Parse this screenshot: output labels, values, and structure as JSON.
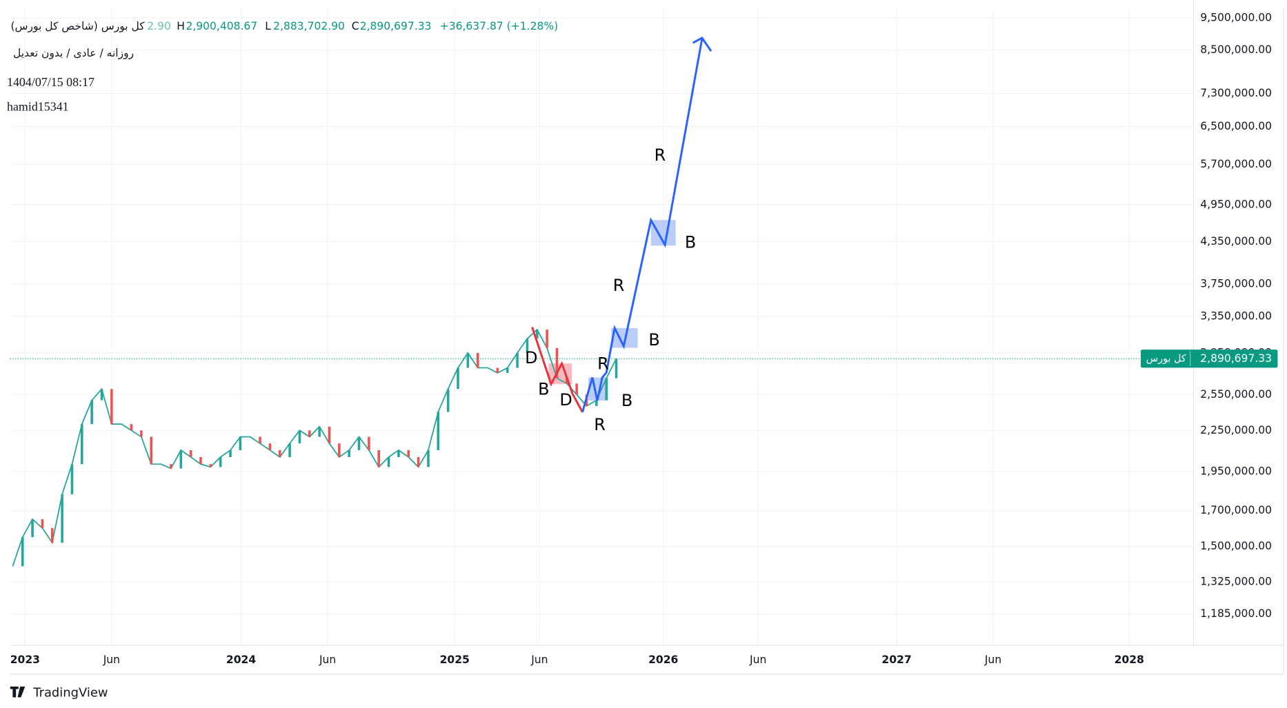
{
  "header": {
    "title": "کل بورس (شاخص کل بورس)",
    "open_fragment": "2.90",
    "h_label": "H",
    "high": "2,900,408.67",
    "l_label": "L",
    "low": "2,883,702.90",
    "c_label": "C",
    "close": "2,890,697.33",
    "change": "+36,637.87 (+1.28%)",
    "interval": "روزانه / عادی / بدون تعدیل",
    "timestamp": "1404/07/15 08:17",
    "author": "hamid15341"
  },
  "chart_data": {
    "type": "line",
    "log_scale": true,
    "grid": true,
    "color": "#26a69a",
    "x_labels": [
      "2023",
      "Jun",
      "2024",
      "Jun",
      "2025",
      "Jun",
      "2026",
      "Jun",
      "2027",
      "Jun",
      "2028"
    ],
    "values": [
      1400000,
      1550000,
      1650000,
      1600000,
      1520000,
      1800000,
      2000000,
      2300000,
      2500000,
      2600000,
      2300000,
      2300000,
      2250000,
      2200000,
      2000000,
      2000000,
      1970000,
      2100000,
      2050000,
      2000000,
      1980000,
      2050000,
      2100000,
      2200000,
      2200000,
      2150000,
      2100000,
      2050000,
      2150000,
      2250000,
      2200000,
      2280000,
      2150000,
      2050000,
      2100000,
      2200000,
      2100000,
      1980000,
      2050000,
      2100000,
      2050000,
      1980000,
      2100000,
      2400000,
      2600000,
      2800000,
      2950000,
      2800000,
      2800000,
      2750000,
      2800000,
      2950000,
      3100000,
      3200000,
      3000000,
      2700000,
      2650000,
      2550000,
      2450000,
      2500000,
      2700000,
      2890697.33
    ],
    "ylim": [
      1062000,
      9830000
    ],
    "yticks": [
      {
        "value": 1185000,
        "label": "1,185,000.00"
      },
      {
        "value": 1325000,
        "label": "1,325,000.00"
      },
      {
        "value": 1500000,
        "label": "1,500,000.00"
      },
      {
        "value": 1700000,
        "label": "1,700,000.00"
      },
      {
        "value": 1950000,
        "label": "1,950,000.00"
      },
      {
        "value": 2250000,
        "label": "2,250,000.00"
      },
      {
        "value": 2550000,
        "label": "2,550,000.00"
      },
      {
        "value": 2950000,
        "label": "2,950,000.00"
      },
      {
        "value": 3350000,
        "label": "3,350,000.00"
      },
      {
        "value": 3750000,
        "label": "3,750,000.00"
      },
      {
        "value": 4350000,
        "label": "4,350,000.00"
      },
      {
        "value": 4950000,
        "label": "4,950,000.00"
      },
      {
        "value": 5700000,
        "label": "5,700,000.00"
      },
      {
        "value": 6500000,
        "label": "6,500,000.00"
      },
      {
        "value": 7300000,
        "label": "7,300,000.00"
      },
      {
        "value": 8500000,
        "label": "8,500,000.00"
      },
      {
        "value": 9500000,
        "label": "9,500,000.00"
      }
    ],
    "last_price_label": {
      "name": "کل بورس",
      "value": "2,890,697.33"
    },
    "annotations": [
      "D",
      "B",
      "D",
      "R",
      "R",
      "B",
      "B",
      "R",
      "B",
      "R"
    ]
  },
  "footer": {
    "brand": "TradingView"
  }
}
